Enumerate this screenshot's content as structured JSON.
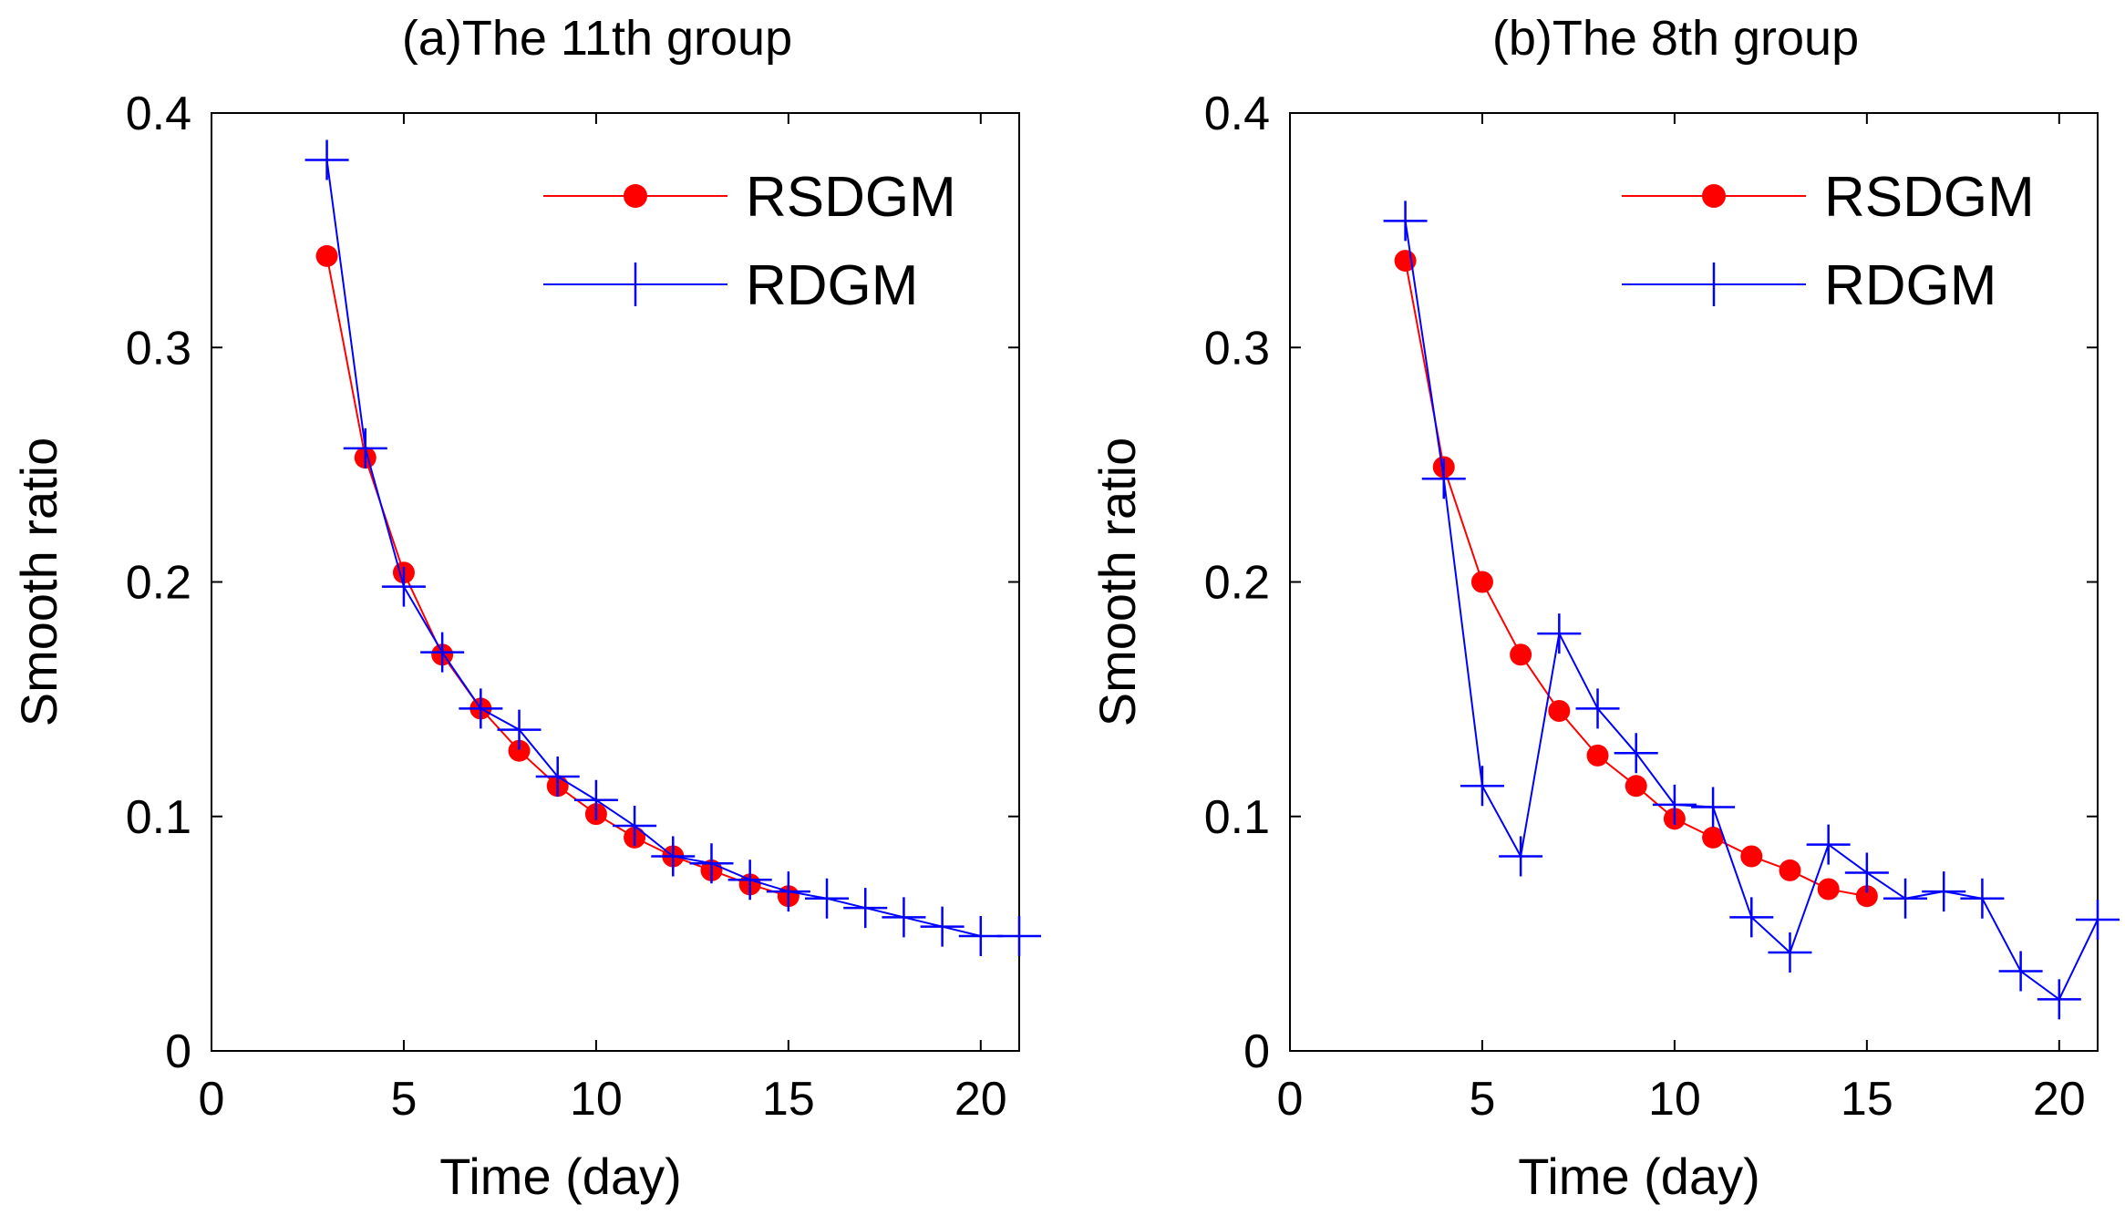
{
  "colors": {
    "rsdgm": "#ff0000",
    "rdgm": "#0000ff"
  },
  "chart_data": [
    {
      "type": "line",
      "title": "(a)The 11th group",
      "xlabel": "Time (day)",
      "ylabel": "Smooth ratio",
      "xlim": [
        0,
        21
      ],
      "ylim": [
        0,
        0.4
      ],
      "xticks": [
        "0",
        "5",
        "10",
        "15",
        "20"
      ],
      "yticks": [
        "0",
        "0.1",
        "0.2",
        "0.3",
        "0.4"
      ],
      "legend_position": "top-right",
      "series": [
        {
          "name": "RSDGM",
          "marker": "filled-circle",
          "x": [
            3,
            4,
            5,
            6,
            7,
            8,
            9,
            10,
            11,
            12,
            13,
            14,
            15
          ],
          "values": [
            0.339,
            0.253,
            0.204,
            0.169,
            0.146,
            0.128,
            0.113,
            0.101,
            0.091,
            0.083,
            0.077,
            0.071,
            0.066
          ]
        },
        {
          "name": "RDGM",
          "marker": "plus",
          "x": [
            3,
            4,
            5,
            6,
            7,
            8,
            9,
            10,
            11,
            12,
            13,
            14,
            15,
            16,
            17,
            18,
            19,
            20,
            21
          ],
          "values": [
            0.38,
            0.257,
            0.198,
            0.17,
            0.146,
            0.137,
            0.117,
            0.107,
            0.096,
            0.083,
            0.08,
            0.073,
            0.068,
            0.065,
            0.061,
            0.057,
            0.053,
            0.049,
            0.049
          ]
        }
      ]
    },
    {
      "type": "line",
      "title": "(b)The 8th group",
      "xlabel": "Time (day)",
      "ylabel": "Smooth ratio",
      "xlim": [
        0,
        21
      ],
      "ylim": [
        0,
        0.4
      ],
      "xticks": [
        "0",
        "5",
        "10",
        "15",
        "20"
      ],
      "yticks": [
        "0",
        "0.1",
        "0.2",
        "0.3",
        "0.4"
      ],
      "legend_position": "top-right",
      "series": [
        {
          "name": "RSDGM",
          "marker": "filled-circle",
          "x": [
            3,
            4,
            5,
            6,
            7,
            8,
            9,
            10,
            11,
            12,
            13,
            14,
            15
          ],
          "values": [
            0.337,
            0.249,
            0.2,
            0.169,
            0.145,
            0.126,
            0.113,
            0.099,
            0.091,
            0.083,
            0.077,
            0.069,
            0.066
          ]
        },
        {
          "name": "RDGM",
          "marker": "plus",
          "x": [
            3,
            4,
            5,
            6,
            7,
            8,
            9,
            10,
            11,
            12,
            13,
            14,
            15,
            16,
            17,
            18,
            19,
            20,
            21
          ],
          "values": [
            0.354,
            0.244,
            0.113,
            0.083,
            0.178,
            0.146,
            0.127,
            0.105,
            0.104,
            0.057,
            0.042,
            0.088,
            0.076,
            0.065,
            0.068,
            0.065,
            0.034,
            0.022,
            0.056
          ]
        }
      ]
    }
  ]
}
